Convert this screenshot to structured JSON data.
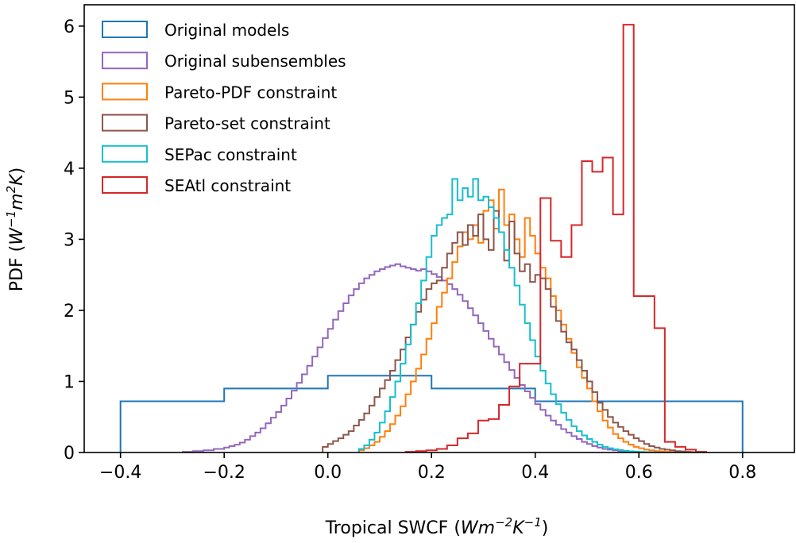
{
  "chart_data": {
    "type": "histogram",
    "xlabel": "Tropical SWCF",
    "xlabel_unit": {
      "base1": "Wm",
      "sup1": "−2",
      "base2": "K",
      "sup2": "−1"
    },
    "ylabel": "PDF",
    "ylabel_unit": {
      "base1": "W",
      "sup1": "−1",
      "base2": "m",
      "sup2": "2",
      "base3": "K"
    },
    "xlim": [
      -0.47,
      0.9
    ],
    "ylim": [
      0,
      6.3
    ],
    "xticks": [
      -0.4,
      -0.2,
      0.0,
      0.2,
      0.4,
      0.6,
      0.8
    ],
    "xtick_labels": [
      "−0.4",
      "−0.2",
      "0.0",
      "0.2",
      "0.4",
      "0.6",
      "0.8"
    ],
    "yticks": [
      0,
      1,
      2,
      3,
      4,
      5,
      6
    ],
    "ytick_labels": [
      "0",
      "1",
      "2",
      "3",
      "4",
      "5",
      "6"
    ],
    "grid": false,
    "legend_position": "upper-left",
    "series": [
      {
        "name": "Original models",
        "color": "#1f77b4",
        "edges": [
          -0.4,
          -0.2,
          0.0,
          0.2,
          0.4,
          0.8
        ],
        "values": [
          0.72,
          0.9,
          1.08,
          0.9,
          0.72
        ]
      },
      {
        "name": "Original subensembles",
        "color": "#9467bd",
        "edges": [
          -0.28,
          -0.26,
          -0.24,
          -0.22,
          -0.2,
          -0.19,
          -0.18,
          -0.17,
          -0.16,
          -0.15,
          -0.14,
          -0.13,
          -0.12,
          -0.11,
          -0.1,
          -0.09,
          -0.08,
          -0.07,
          -0.06,
          -0.05,
          -0.04,
          -0.03,
          -0.02,
          -0.01,
          0.0,
          0.01,
          0.02,
          0.03,
          0.04,
          0.05,
          0.06,
          0.07,
          0.08,
          0.09,
          0.1,
          0.11,
          0.12,
          0.13,
          0.14,
          0.15,
          0.16,
          0.17,
          0.18,
          0.19,
          0.2,
          0.21,
          0.22,
          0.23,
          0.24,
          0.25,
          0.26,
          0.27,
          0.28,
          0.29,
          0.3,
          0.31,
          0.32,
          0.33,
          0.34,
          0.35,
          0.36,
          0.37,
          0.38,
          0.39,
          0.4,
          0.41,
          0.42,
          0.43,
          0.44,
          0.45,
          0.46,
          0.47,
          0.48,
          0.49,
          0.5,
          0.51,
          0.52,
          0.53,
          0.54,
          0.55,
          0.56,
          0.57,
          0.58,
          0.6,
          0.62,
          0.64
        ],
        "values": [
          0.01,
          0.02,
          0.03,
          0.05,
          0.07,
          0.09,
          0.11,
          0.14,
          0.18,
          0.23,
          0.28,
          0.34,
          0.41,
          0.49,
          0.57,
          0.66,
          0.76,
          0.87,
          0.98,
          1.1,
          1.22,
          1.35,
          1.48,
          1.61,
          1.74,
          1.87,
          1.99,
          2.1,
          2.21,
          2.3,
          2.38,
          2.45,
          2.5,
          2.55,
          2.58,
          2.61,
          2.63,
          2.65,
          2.62,
          2.6,
          2.58,
          2.56,
          2.58,
          2.55,
          2.51,
          2.47,
          2.42,
          2.37,
          2.3,
          2.22,
          2.13,
          2.03,
          1.93,
          1.82,
          1.71,
          1.6,
          1.49,
          1.38,
          1.27,
          1.16,
          1.05,
          0.95,
          0.86,
          0.77,
          0.68,
          0.6,
          0.52,
          0.45,
          0.39,
          0.33,
          0.28,
          0.23,
          0.19,
          0.15,
          0.12,
          0.09,
          0.07,
          0.05,
          0.04,
          0.03,
          0.02,
          0.015,
          0.01,
          0.005,
          0.003
        ]
      },
      {
        "name": "Pareto-PDF constraint",
        "color": "#ff7f0e",
        "edges": [
          0.06,
          0.07,
          0.08,
          0.09,
          0.1,
          0.11,
          0.12,
          0.13,
          0.14,
          0.15,
          0.16,
          0.17,
          0.18,
          0.19,
          0.2,
          0.21,
          0.22,
          0.23,
          0.24,
          0.25,
          0.26,
          0.27,
          0.28,
          0.29,
          0.3,
          0.31,
          0.32,
          0.33,
          0.34,
          0.35,
          0.36,
          0.37,
          0.38,
          0.39,
          0.4,
          0.41,
          0.42,
          0.43,
          0.44,
          0.45,
          0.46,
          0.47,
          0.48,
          0.49,
          0.5,
          0.51,
          0.52,
          0.53,
          0.54,
          0.55,
          0.56,
          0.57,
          0.58,
          0.59,
          0.6,
          0.61,
          0.62,
          0.63,
          0.64,
          0.65,
          0.66,
          0.67,
          0.68
        ],
        "values": [
          0.03,
          0.06,
          0.1,
          0.15,
          0.22,
          0.3,
          0.4,
          0.52,
          0.65,
          0.82,
          1.0,
          1.18,
          1.38,
          1.6,
          1.82,
          2.05,
          2.25,
          2.45,
          2.68,
          2.9,
          3.1,
          3.0,
          3.2,
          2.95,
          3.4,
          3.55,
          3.15,
          3.7,
          3.2,
          3.35,
          3.0,
          2.75,
          3.3,
          3.05,
          2.8,
          2.6,
          2.45,
          2.2,
          2.0,
          1.8,
          1.6,
          1.4,
          1.2,
          1.05,
          0.9,
          0.72,
          0.58,
          0.45,
          0.35,
          0.26,
          0.2,
          0.15,
          0.11,
          0.08,
          0.06,
          0.04,
          0.03,
          0.02,
          0.015,
          0.01,
          0.005,
          0.003
        ]
      },
      {
        "name": "Pareto-set constraint",
        "color": "#8c564b",
        "edges": [
          -0.01,
          0.0,
          0.01,
          0.02,
          0.03,
          0.04,
          0.05,
          0.06,
          0.07,
          0.08,
          0.09,
          0.1,
          0.11,
          0.12,
          0.13,
          0.14,
          0.15,
          0.16,
          0.17,
          0.18,
          0.19,
          0.2,
          0.21,
          0.22,
          0.23,
          0.24,
          0.25,
          0.26,
          0.27,
          0.28,
          0.29,
          0.3,
          0.31,
          0.32,
          0.33,
          0.34,
          0.35,
          0.36,
          0.37,
          0.38,
          0.39,
          0.4,
          0.41,
          0.42,
          0.43,
          0.44,
          0.45,
          0.46,
          0.47,
          0.48,
          0.49,
          0.5,
          0.51,
          0.52,
          0.53,
          0.54,
          0.55,
          0.56,
          0.57,
          0.58,
          0.59,
          0.6,
          0.61,
          0.62,
          0.63,
          0.64,
          0.65,
          0.66,
          0.67,
          0.68,
          0.69,
          0.7,
          0.71
        ],
        "values": [
          0.08,
          0.12,
          0.16,
          0.2,
          0.25,
          0.3,
          0.38,
          0.46,
          0.55,
          0.66,
          0.78,
          0.9,
          1.02,
          1.15,
          1.3,
          1.45,
          1.62,
          1.8,
          1.98,
          2.15,
          2.3,
          2.38,
          2.42,
          2.6,
          2.8,
          2.95,
          3.1,
          2.92,
          3.2,
          3.05,
          3.35,
          3.0,
          2.85,
          3.4,
          3.1,
          2.7,
          3.25,
          2.8,
          2.55,
          2.65,
          2.4,
          2.5,
          2.45,
          2.3,
          2.05,
          1.85,
          1.7,
          1.55,
          1.45,
          1.3,
          1.15,
          1.0,
          0.85,
          0.7,
          0.6,
          0.5,
          0.42,
          0.36,
          0.3,
          0.25,
          0.2,
          0.16,
          0.12,
          0.09,
          0.07,
          0.05,
          0.04,
          0.03,
          0.02,
          0.015,
          0.01,
          0.005
        ]
      },
      {
        "name": "SEPac constraint",
        "color": "#17becf",
        "edges": [
          0.06,
          0.07,
          0.08,
          0.09,
          0.1,
          0.11,
          0.12,
          0.13,
          0.14,
          0.15,
          0.16,
          0.17,
          0.18,
          0.19,
          0.2,
          0.21,
          0.22,
          0.23,
          0.24,
          0.25,
          0.26,
          0.27,
          0.28,
          0.29,
          0.3,
          0.31,
          0.32,
          0.33,
          0.34,
          0.35,
          0.36,
          0.37,
          0.38,
          0.39,
          0.4,
          0.41,
          0.42,
          0.43,
          0.44,
          0.45,
          0.46,
          0.47,
          0.48,
          0.49,
          0.5,
          0.51,
          0.52,
          0.53,
          0.54,
          0.55,
          0.56,
          0.57,
          0.58,
          0.59,
          0.6,
          0.61,
          0.62,
          0.63,
          0.64
        ],
        "values": [
          0.05,
          0.1,
          0.18,
          0.28,
          0.42,
          0.58,
          0.78,
          1.0,
          1.25,
          1.52,
          1.8,
          2.1,
          2.42,
          2.75,
          3.05,
          3.2,
          3.3,
          3.35,
          3.85,
          3.55,
          3.72,
          3.6,
          3.85,
          3.55,
          3.6,
          3.45,
          3.3,
          3.1,
          2.85,
          2.6,
          2.35,
          2.08,
          1.82,
          1.58,
          1.35,
          1.15,
          0.97,
          0.82,
          0.68,
          0.56,
          0.46,
          0.37,
          0.3,
          0.24,
          0.19,
          0.15,
          0.11,
          0.08,
          0.06,
          0.045,
          0.033,
          0.024,
          0.017,
          0.012,
          0.008,
          0.005,
          0.003,
          0.002
        ]
      },
      {
        "name": "SEAtl constraint",
        "color": "#d62728",
        "edges": [
          0.15,
          0.17,
          0.19,
          0.21,
          0.23,
          0.25,
          0.27,
          0.29,
          0.31,
          0.33,
          0.35,
          0.37,
          0.39,
          0.41,
          0.43,
          0.45,
          0.47,
          0.49,
          0.51,
          0.53,
          0.55,
          0.57,
          0.59,
          0.61,
          0.63,
          0.65,
          0.67,
          0.69,
          0.71,
          0.73
        ],
        "values": [
          0.01,
          0.02,
          0.03,
          0.05,
          0.1,
          0.2,
          0.27,
          0.45,
          0.47,
          0.67,
          0.93,
          1.25,
          1.25,
          3.58,
          2.98,
          2.75,
          3.2,
          4.1,
          3.95,
          4.15,
          3.35,
          6.02,
          2.2,
          2.2,
          1.75,
          0.15,
          0.08,
          0.04,
          0.01
        ]
      }
    ]
  }
}
